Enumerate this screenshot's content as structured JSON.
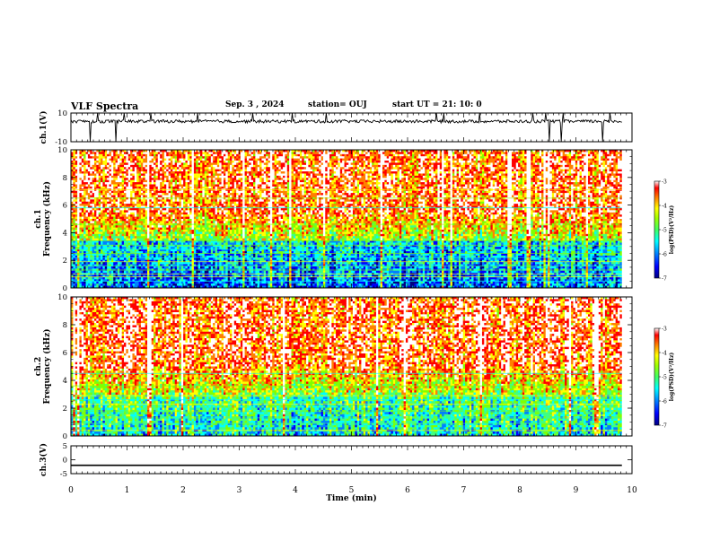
{
  "header": {
    "title": "VLF Spectra",
    "date": "Sep. 3 , 2024",
    "station": "station= OUJ",
    "start": "start UT = 21: 10: 0"
  },
  "chart_data": [
    {
      "type": "line",
      "panel": "ch1-waveform",
      "ylabel": "ch.1(V)",
      "ylim": [
        -10,
        10
      ],
      "yticks": [
        "10",
        "-10"
      ],
      "series": [
        {
          "values": []
        }
      ],
      "baseline": 4.2
    },
    {
      "type": "heatmap",
      "panel": "ch1-spectrogram",
      "ylabel": "ch.1\nFrequency (kHz)",
      "ylim": [
        0,
        10
      ],
      "yticks": [
        "0",
        "2",
        "4",
        "6",
        "8",
        "10"
      ],
      "colorbar": {
        "label": "log(PSD)(V²/Hz)",
        "ticks": [
          "-3",
          "-4",
          "-5",
          "-6",
          "-7"
        ],
        "range": [
          -7,
          -3
        ]
      },
      "colormap": [
        "#000080",
        "#0000ff",
        "#0080ff",
        "#00ffff",
        "#40ff80",
        "#80ff00",
        "#ffff00",
        "#ff8000",
        "#ff0000",
        "#ffffff"
      ]
    },
    {
      "type": "heatmap",
      "panel": "ch2-spectrogram",
      "ylabel": "ch.2\nFrequency (kHz)",
      "ylim": [
        0,
        10
      ],
      "yticks": [
        "0",
        "2",
        "4",
        "6",
        "8",
        "10"
      ],
      "colorbar": {
        "label": "log(PSD)(V²/Hz)",
        "ticks": [
          "-3",
          "-4",
          "-5",
          "-6",
          "-7"
        ],
        "range": [
          -7,
          -3
        ]
      },
      "colormap": [
        "#000080",
        "#0000ff",
        "#0080ff",
        "#00ffff",
        "#40ff80",
        "#80ff00",
        "#ffff00",
        "#ff8000",
        "#ff0000",
        "#ffffff"
      ]
    },
    {
      "type": "line",
      "panel": "ch3-waveform",
      "ylabel": "ch.3(V)",
      "ylim": [
        -5,
        5
      ],
      "yticks": [
        "5",
        "0",
        "-5"
      ],
      "series": [
        {
          "values": [
            -2,
            -2
          ]
        }
      ]
    }
  ],
  "xaxis": {
    "label": "Time (min)",
    "ticks": [
      "0",
      "1",
      "2",
      "3",
      "4",
      "5",
      "6",
      "7",
      "8",
      "9",
      "10"
    ],
    "xlim": [
      0,
      10
    ],
    "data_end": 9.82
  }
}
